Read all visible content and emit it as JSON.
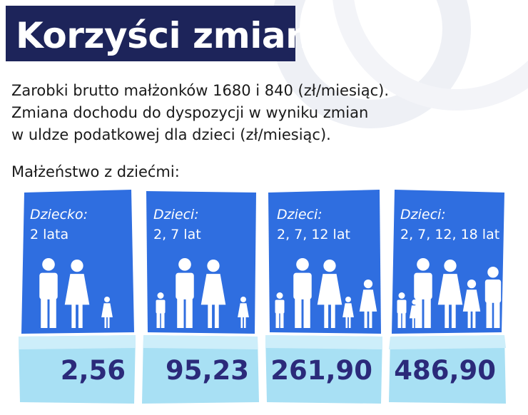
{
  "title": "Korzyści zmian",
  "intro_lines": [
    "Zarobki brutto małżonków 1680 i 840 (zł/miesiąc).",
    "Zmiana dochodu do dyspozycji w wyniku zmian",
    "w uldze podatkowej dla dzieci (zł/miesiąc)."
  ],
  "subtitle": "Małżeństwo z dziećmi:",
  "cards": [
    {
      "label": "Dziecko:",
      "ages": "2 lata",
      "value": "2,56",
      "children": 1
    },
    {
      "label": "Dzieci:",
      "ages": "2, 7 lat",
      "value": "95,23",
      "children": 2
    },
    {
      "label": "Dzieci:",
      "ages": "2, 7, 12 lat",
      "value": "261,90",
      "children": 3
    },
    {
      "label": "Dzieci:",
      "ages": "2, 7, 12, 18 lat",
      "value": "486,90",
      "children": 4
    }
  ],
  "colors": {
    "title_bg": "#1d245a",
    "card_blue": "#2f6ee0",
    "value_band": "#a8e0f4",
    "value_text": "#2b2a7a"
  }
}
